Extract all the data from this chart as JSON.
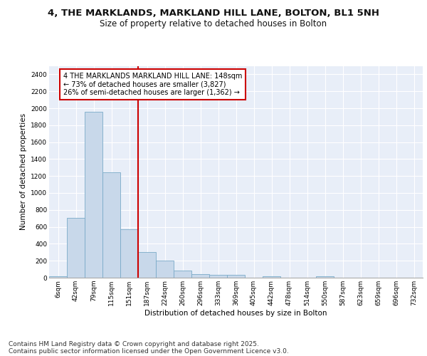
{
  "title_line1": "4, THE MARKLANDS, MARKLAND HILL LANE, BOLTON, BL1 5NH",
  "title_line2": "Size of property relative to detached houses in Bolton",
  "xlabel": "Distribution of detached houses by size in Bolton",
  "ylabel": "Number of detached properties",
  "bar_labels": [
    "6sqm",
    "42sqm",
    "79sqm",
    "115sqm",
    "151sqm",
    "187sqm",
    "224sqm",
    "260sqm",
    "296sqm",
    "333sqm",
    "369sqm",
    "405sqm",
    "442sqm",
    "478sqm",
    "514sqm",
    "550sqm",
    "587sqm",
    "623sqm",
    "659sqm",
    "696sqm",
    "732sqm"
  ],
  "bar_values": [
    20,
    710,
    1960,
    1240,
    575,
    305,
    200,
    80,
    42,
    35,
    35,
    0,
    20,
    0,
    0,
    20,
    0,
    0,
    0,
    0,
    0
  ],
  "bar_color": "#c8d8ea",
  "bar_edge_color": "#7aaac8",
  "vline_x_index": 4,
  "vline_color": "#cc0000",
  "annotation_text": "4 THE MARKLANDS MARKLAND HILL LANE: 148sqm\n← 73% of detached houses are smaller (3,827)\n26% of semi-detached houses are larger (1,362) →",
  "annotation_box_color": "#ffffff",
  "annotation_box_edge": "#cc0000",
  "ylim": [
    0,
    2500
  ],
  "yticks": [
    0,
    200,
    400,
    600,
    800,
    1000,
    1200,
    1400,
    1600,
    1800,
    2000,
    2200,
    2400
  ],
  "background_color": "#e8eef8",
  "grid_color": "#ffffff",
  "footer_text1": "Contains HM Land Registry data © Crown copyright and database right 2025.",
  "footer_text2": "Contains public sector information licensed under the Open Government Licence v3.0.",
  "title_fontsize": 9.5,
  "subtitle_fontsize": 8.5,
  "axis_label_fontsize": 7.5,
  "tick_fontsize": 6.5,
  "annotation_fontsize": 7,
  "footer_fontsize": 6.5
}
